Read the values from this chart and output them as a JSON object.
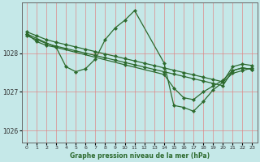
{
  "title": "Graphe pression niveau de la mer (hPa)",
  "bg_color": "#c5e8e8",
  "grid_color": "#e08080",
  "line_color": "#2d6a2d",
  "ylim": [
    1025.7,
    1029.3
  ],
  "xlim": [
    -0.5,
    23.5
  ],
  "yticks": [
    1026,
    1027,
    1028
  ],
  "xticks": [
    0,
    1,
    2,
    3,
    4,
    5,
    6,
    7,
    8,
    9,
    10,
    11,
    12,
    13,
    14,
    15,
    16,
    17,
    18,
    19,
    20,
    21,
    22,
    23
  ],
  "series": [
    {
      "x": [
        0,
        1,
        2,
        3,
        4,
        5,
        6,
        7,
        8,
        9,
        10,
        11,
        12,
        13,
        14,
        15,
        16,
        17,
        18,
        19,
        20,
        21,
        22,
        23
      ],
      "y": [
        1028.55,
        1028.45,
        1028.35,
        1028.28,
        1028.22,
        1028.16,
        1028.1,
        1028.04,
        1027.98,
        1027.92,
        1027.86,
        1027.8,
        1027.74,
        1027.68,
        1027.62,
        1027.56,
        1027.5,
        1027.44,
        1027.38,
        1027.32,
        1027.26,
        1027.65,
        1027.72,
        1027.68
      ]
    },
    {
      "x": [
        0,
        1,
        2,
        3,
        4,
        5,
        6,
        7,
        8,
        9,
        10,
        11,
        12,
        13,
        14,
        15,
        16,
        17,
        18,
        19,
        20,
        21,
        22,
        23
      ],
      "y": [
        1028.45,
        1028.35,
        1028.25,
        1028.18,
        1028.12,
        1028.06,
        1028.0,
        1027.94,
        1027.88,
        1027.82,
        1027.76,
        1027.7,
        1027.64,
        1027.58,
        1027.52,
        1027.46,
        1027.4,
        1027.34,
        1027.28,
        1027.22,
        1027.16,
        1027.55,
        1027.62,
        1027.58
      ]
    },
    {
      "x": [
        0,
        1,
        2,
        3,
        4,
        5,
        6,
        7,
        8,
        9,
        10,
        11,
        14,
        15,
        16,
        17,
        18,
        19,
        20,
        21,
        22,
        23
      ],
      "y": [
        1028.5,
        1028.3,
        1028.2,
        1028.15,
        1027.65,
        1027.52,
        1027.6,
        1027.85,
        1028.35,
        1028.65,
        1028.85,
        1029.1,
        1027.75,
        1026.65,
        1026.6,
        1026.5,
        1026.75,
        1027.05,
        1027.25,
        1027.48,
        1027.55,
        1027.62
      ]
    },
    {
      "x": [
        0,
        3,
        10,
        14,
        15,
        16,
        17,
        18,
        19,
        20,
        21,
        22,
        23
      ],
      "y": [
        1028.5,
        1028.15,
        1027.7,
        1027.45,
        1027.1,
        1026.85,
        1026.8,
        1027.0,
        1027.15,
        1027.3,
        1027.55,
        1027.62,
        1027.58
      ]
    }
  ]
}
